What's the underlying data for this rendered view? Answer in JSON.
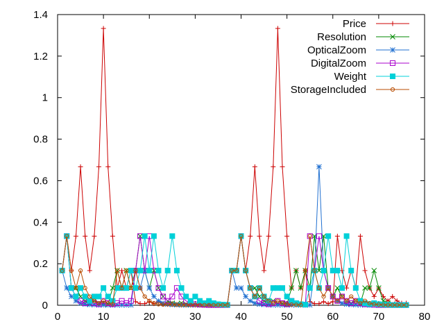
{
  "chart_data": {
    "type": "line",
    "title": "",
    "xlabel": "",
    "ylabel": "",
    "xlim": [
      0,
      80
    ],
    "ylim": [
      0,
      1.4
    ],
    "xticks": [
      0,
      10,
      20,
      30,
      40,
      50,
      60,
      70,
      80
    ],
    "yticks": [
      0,
      0.2,
      0.4,
      0.6,
      0.8,
      1,
      1.2,
      1.4
    ],
    "xtick_labels": [
      "0",
      "10",
      "20",
      "30",
      "40",
      "50",
      "60",
      "70",
      "80"
    ],
    "ytick_labels": [
      "0",
      "0.2",
      "0.4",
      "0.6",
      "0.8",
      "1",
      "1.2",
      "1.4"
    ],
    "grid": false,
    "legend_position": "top-right",
    "x": [
      1,
      2,
      3,
      4,
      5,
      6,
      7,
      8,
      9,
      10,
      11,
      12,
      13,
      14,
      15,
      16,
      17,
      18,
      19,
      20,
      21,
      22,
      23,
      24,
      25,
      26,
      27,
      28,
      29,
      30,
      31,
      32,
      33,
      34,
      35,
      36,
      37,
      38,
      39,
      40,
      41,
      42,
      43,
      44,
      45,
      46,
      47,
      48,
      49,
      50,
      51,
      52,
      53,
      54,
      55,
      56,
      57,
      58,
      59,
      60,
      61,
      62,
      63,
      64,
      65,
      66,
      67,
      68,
      69,
      70,
      71,
      72,
      73,
      74,
      75,
      76
    ],
    "series": [
      {
        "name": "Price",
        "color": "#cc0000",
        "marker": "plus",
        "values": [
          0.167,
          0.333,
          0.167,
          0.333,
          0.667,
          0.333,
          0.167,
          0.333,
          0.667,
          1.333,
          0.667,
          0.333,
          0.083,
          0.167,
          0.083,
          0.167,
          0.017,
          0.008,
          0.008,
          0.017,
          0.008,
          0.017,
          0.008,
          0.004,
          0.008,
          0.004,
          0.004,
          0.002,
          0.004,
          0.002,
          0.002,
          0.001,
          0.001,
          0.001,
          0.001,
          0.001,
          0.001,
          0.167,
          0.167,
          0.333,
          0.167,
          0.333,
          0.667,
          0.333,
          0.167,
          0.333,
          0.667,
          1.333,
          0.667,
          0.333,
          0.083,
          0.167,
          0.083,
          0.167,
          0.017,
          0.008,
          0.008,
          0.017,
          0.008,
          0.017,
          0.333,
          0.167,
          0.083,
          0.167,
          0.083,
          0.333,
          0.167,
          0.083,
          0.042,
          0.083,
          0.042,
          0.021,
          0.042,
          0.021,
          0.01,
          0.01
        ]
      },
      {
        "name": "Resolution",
        "color": "#008800",
        "marker": "x",
        "values": [
          0.167,
          0.333,
          0.083,
          0.083,
          0.042,
          0.021,
          0.01,
          0.021,
          0.01,
          0.01,
          0.005,
          0.083,
          0.167,
          0.083,
          0.167,
          0.083,
          0.167,
          0.333,
          0.167,
          0.083,
          0.167,
          0.083,
          0.042,
          0.021,
          0.01,
          0.005,
          0.01,
          0.005,
          0.003,
          0.003,
          0.002,
          0.001,
          0.002,
          0.001,
          0.001,
          0.001,
          0.001,
          0.167,
          0.167,
          0.333,
          0.167,
          0.083,
          0.083,
          0.042,
          0.021,
          0.01,
          0.021,
          0.01,
          0.01,
          0.005,
          0.083,
          0.167,
          0.083,
          0.167,
          0.083,
          0.333,
          0.167,
          0.333,
          0.083,
          0.042,
          0.083,
          0.042,
          0.021,
          0.01,
          0.021,
          0.01,
          0.083,
          0.083,
          0.167,
          0.083,
          0.021,
          0.01,
          0.005,
          0.003,
          0.002,
          0.001
        ]
      },
      {
        "name": "OpticalZoom",
        "color": "#1f6fd0",
        "marker": "star",
        "values": [
          0.167,
          0.083,
          0.042,
          0.021,
          0.01,
          0.005,
          0.003,
          0.002,
          0.001,
          0.001,
          0.001,
          0.001,
          0.001,
          0.001,
          0.001,
          0.001,
          0.167,
          0.083,
          0.167,
          0.083,
          0.042,
          0.021,
          0.01,
          0.005,
          0.003,
          0.002,
          0.001,
          0.001,
          0.001,
          0.001,
          0.001,
          0.001,
          0.001,
          0.001,
          0.001,
          0.001,
          0.001,
          0.167,
          0.083,
          0.083,
          0.042,
          0.021,
          0.01,
          0.005,
          0.003,
          0.002,
          0.001,
          0.001,
          0.001,
          0.001,
          0.001,
          0.001,
          0.001,
          0.001,
          0.001,
          0.167,
          0.667,
          0.167,
          0.083,
          0.042,
          0.021,
          0.01,
          0.005,
          0.003,
          0.002,
          0.001,
          0.001,
          0.001,
          0.001,
          0.001,
          0.001,
          0.001,
          0.001,
          0.001,
          0.001,
          0.001
        ]
      },
      {
        "name": "DigitalZoom",
        "color": "#aa00cc",
        "marker": "square-open",
        "values": [
          0.167,
          0.333,
          0.083,
          0.042,
          0.021,
          0.01,
          0.021,
          0.01,
          0.005,
          0.021,
          0.01,
          0.005,
          0.01,
          0.021,
          0.01,
          0.021,
          0.167,
          0.333,
          0.167,
          0.333,
          0.167,
          0.083,
          0.042,
          0.021,
          0.042,
          0.083,
          0.042,
          0.021,
          0.01,
          0.005,
          0.003,
          0.002,
          0.001,
          0.001,
          0.001,
          0.001,
          0.001,
          0.167,
          0.167,
          0.333,
          0.167,
          0.083,
          0.042,
          0.021,
          0.01,
          0.005,
          0.01,
          0.021,
          0.01,
          0.005,
          0.021,
          0.01,
          0.005,
          0.003,
          0.333,
          0.167,
          0.333,
          0.167,
          0.083,
          0.042,
          0.021,
          0.042,
          0.021,
          0.01,
          0.021,
          0.01,
          0.005,
          0.003,
          0.002,
          0.001,
          0.001,
          0.001,
          0.001,
          0.001,
          0.001,
          0.001
        ]
      },
      {
        "name": "Weight",
        "color": "#00d0d8",
        "marker": "square-filled",
        "values": [
          0.167,
          0.333,
          0.083,
          0.042,
          0.083,
          0.042,
          0.021,
          0.042,
          0.042,
          0.083,
          0.042,
          0.021,
          0.083,
          0.083,
          0.083,
          0.167,
          0.083,
          0.167,
          0.333,
          0.167,
          0.333,
          0.167,
          0.083,
          0.167,
          0.333,
          0.167,
          0.083,
          0.042,
          0.021,
          0.042,
          0.021,
          0.01,
          0.021,
          0.01,
          0.005,
          0.003,
          0.002,
          0.167,
          0.167,
          0.333,
          0.167,
          0.083,
          0.042,
          0.083,
          0.042,
          0.021,
          0.083,
          0.083,
          0.083,
          0.042,
          0.021,
          0.01,
          0.005,
          0.003,
          0.083,
          0.167,
          0.083,
          0.167,
          0.333,
          0.167,
          0.167,
          0.083,
          0.333,
          0.167,
          0.083,
          0.021,
          0.01,
          0.005,
          0.01,
          0.005,
          0.003,
          0.002,
          0.001,
          0.001,
          0.001,
          0.001
        ]
      },
      {
        "name": "StorageIncluded",
        "color": "#b84c00",
        "marker": "circle",
        "values": [
          0.167,
          0.333,
          0.167,
          0.083,
          0.167,
          0.083,
          0.042,
          0.021,
          0.01,
          0.021,
          0.01,
          0.005,
          0.167,
          0.083,
          0.167,
          0.083,
          0.167,
          0.083,
          0.042,
          0.021,
          0.01,
          0.005,
          0.003,
          0.005,
          0.003,
          0.002,
          0.001,
          0.001,
          0.001,
          0.001,
          0.001,
          0.001,
          0.001,
          0.001,
          0.001,
          0.001,
          0.001,
          0.167,
          0.167,
          0.333,
          0.167,
          0.083,
          0.042,
          0.083,
          0.042,
          0.021,
          0.01,
          0.021,
          0.01,
          0.005,
          0.003,
          0.002,
          0.001,
          0.167,
          0.333,
          0.167,
          0.083,
          0.042,
          0.083,
          0.042,
          0.021,
          0.042,
          0.021,
          0.042,
          0.021,
          0.01,
          0.021,
          0.01,
          0.005,
          0.003,
          0.002,
          0.001,
          0.001,
          0.001,
          0.001,
          0.001
        ]
      }
    ]
  }
}
